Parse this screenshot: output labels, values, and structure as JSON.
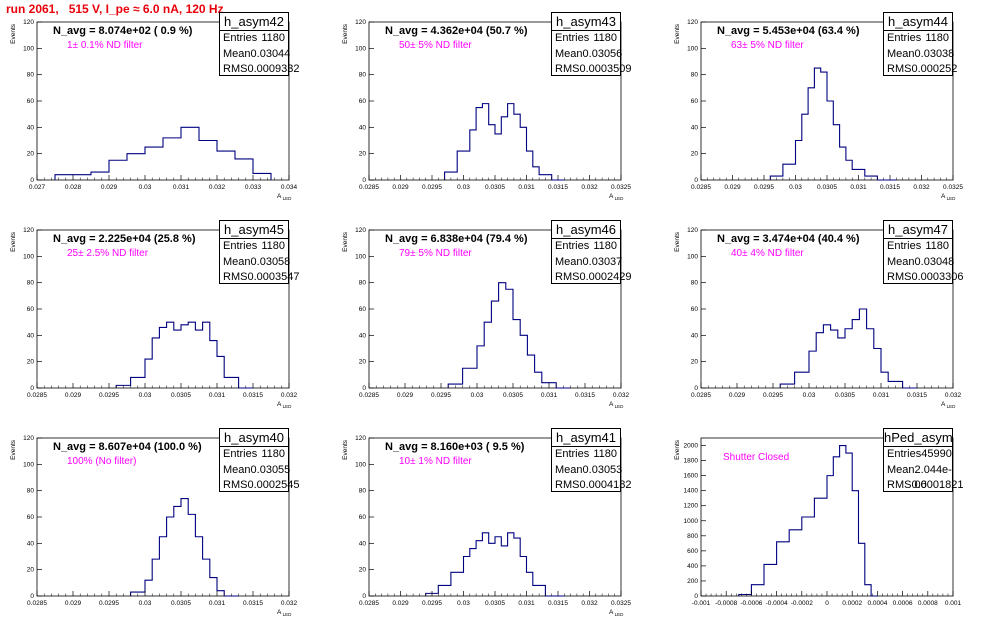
{
  "figure": {
    "title": "run 2061,   515 V, I_pe ≈ 6.0 nA, 120 Hz"
  },
  "chart_data": [
    {
      "type": "bar",
      "name": "h_asym42",
      "stats": {
        "entries": "1180",
        "mean": "0.03044",
        "rms": "0.0009332"
      },
      "navg": "N_avg = 8.074e+02 ( 0.9 %)",
      "note": "1± 0.1% ND filter",
      "xlabel": "A_LED",
      "ylabel": "Events",
      "xlim": [
        0.027,
        0.034
      ],
      "ylim": [
        0,
        120
      ],
      "xticks": [
        "0.027",
        "0.028",
        "0.029",
        "0.03",
        "0.031",
        "0.032",
        "0.033",
        "0.034"
      ],
      "yticks": [
        "0",
        "20",
        "40",
        "60",
        "80",
        "100",
        "120"
      ],
      "bin_edges": [
        0.0275,
        0.0285,
        0.029,
        0.0295,
        0.03,
        0.0305,
        0.031,
        0.0315,
        0.032,
        0.0325,
        0.033,
        0.0335
      ],
      "values": [
        4,
        6,
        15,
        20,
        25,
        32,
        40,
        30,
        22,
        16,
        5,
        0
      ]
    },
    {
      "type": "bar",
      "name": "h_asym43",
      "stats": {
        "entries": "1180",
        "mean": "0.03056",
        "rms": "0.0003509"
      },
      "navg": "N_avg = 4.362e+04 (50.7 %)",
      "note": "50± 5% ND filter",
      "xlabel": "A_LED",
      "ylabel": "Events",
      "xlim": [
        0.0285,
        0.0325
      ],
      "ylim": [
        0,
        120
      ],
      "xticks": [
        "0.0285",
        "0.029",
        "0.0295",
        "0.03",
        "0.0305",
        "0.031",
        "0.0315",
        "0.032",
        "0.0325"
      ],
      "yticks": [
        "0",
        "20",
        "40",
        "60",
        "80",
        "100",
        "120"
      ],
      "bin_edges": [
        0.0297,
        0.0299,
        0.0301,
        0.0302,
        0.0303,
        0.0304,
        0.0305,
        0.0306,
        0.0307,
        0.0308,
        0.0309,
        0.031,
        0.0311,
        0.0312,
        0.0314,
        0.0316
      ],
      "values": [
        6,
        22,
        38,
        55,
        58,
        42,
        35,
        48,
        58,
        50,
        40,
        22,
        10,
        4,
        0
      ]
    },
    {
      "type": "bar",
      "name": "h_asym44",
      "stats": {
        "entries": "1180",
        "mean": "0.03038",
        "rms": "0.000252"
      },
      "navg": "N_avg = 5.453e+04 (63.4 %)",
      "note": "63± 5% ND filter",
      "xlabel": "A_LED",
      "ylabel": "Events",
      "xlim": [
        0.0285,
        0.0325
      ],
      "ylim": [
        0,
        120
      ],
      "xticks": [
        "0.0285",
        "0.029",
        "0.0295",
        "0.03",
        "0.0305",
        "0.031",
        "0.0315",
        "0.032",
        "0.0325"
      ],
      "yticks": [
        "0",
        "20",
        "40",
        "60",
        "80",
        "100",
        "120"
      ],
      "bin_edges": [
        0.0296,
        0.0298,
        0.03,
        0.0301,
        0.0302,
        0.0303,
        0.0304,
        0.0305,
        0.0306,
        0.0307,
        0.0308,
        0.0309,
        0.0311,
        0.0313,
        0.0316
      ],
      "values": [
        3,
        12,
        30,
        50,
        70,
        85,
        82,
        60,
        42,
        25,
        15,
        8,
        3,
        0
      ]
    },
    {
      "type": "bar",
      "name": "h_asym45",
      "stats": {
        "entries": "1180",
        "mean": "0.03058",
        "rms": "0.0003547"
      },
      "navg": "N_avg = 2.225e+04 (25.8 %)",
      "note": "25± 2.5% ND filter",
      "xlabel": "A_LED",
      "ylabel": "Events",
      "xlim": [
        0.0285,
        0.032
      ],
      "ylim": [
        0,
        120
      ],
      "xticks": [
        "0.0285",
        "0.029",
        "0.0295",
        "0.03",
        "0.0305",
        "0.031",
        "0.0315",
        "0.032"
      ],
      "yticks": [
        "0",
        "20",
        "40",
        "60",
        "80",
        "100",
        "120"
      ],
      "bin_edges": [
        0.0296,
        0.0298,
        0.03,
        0.0301,
        0.0302,
        0.0303,
        0.0304,
        0.0305,
        0.0306,
        0.0307,
        0.0308,
        0.0309,
        0.031,
        0.0311,
        0.0313,
        0.0315
      ],
      "values": [
        2,
        8,
        22,
        38,
        46,
        50,
        44,
        48,
        50,
        44,
        50,
        36,
        24,
        8,
        0
      ]
    },
    {
      "type": "bar",
      "name": "h_asym46",
      "stats": {
        "entries": "1180",
        "mean": "0.03037",
        "rms": "0.0002429"
      },
      "navg": "N_avg = 6.838e+04 (79.4 %)",
      "note": "79± 5% ND filter",
      "xlabel": "A_LED",
      "ylabel": "Events",
      "xlim": [
        0.0285,
        0.032
      ],
      "ylim": [
        0,
        120
      ],
      "xticks": [
        "0.0285",
        "0.029",
        "0.0295",
        "0.03",
        "0.0305",
        "0.031",
        "0.0315",
        "0.032"
      ],
      "yticks": [
        "0",
        "20",
        "40",
        "60",
        "80",
        "100",
        "120"
      ],
      "bin_edges": [
        0.0296,
        0.0298,
        0.03,
        0.0301,
        0.0302,
        0.0303,
        0.0304,
        0.0305,
        0.0306,
        0.0307,
        0.0308,
        0.0309,
        0.0311,
        0.0313
      ],
      "values": [
        3,
        15,
        32,
        50,
        66,
        80,
        75,
        52,
        40,
        25,
        12,
        4,
        0
      ]
    },
    {
      "type": "bar",
      "name": "h_asym47",
      "stats": {
        "entries": "1180",
        "mean": "0.03048",
        "rms": "0.0003306"
      },
      "navg": "N_avg = 3.474e+04 (40.4 %)",
      "note": "40± 4% ND filter",
      "xlabel": "A_LED",
      "ylabel": "Events",
      "xlim": [
        0.0285,
        0.032
      ],
      "ylim": [
        0,
        120
      ],
      "xticks": [
        "0.0285",
        "0.029",
        "0.0295",
        "0.03",
        "0.0305",
        "0.031",
        "0.0315",
        "0.032"
      ],
      "yticks": [
        "0",
        "20",
        "40",
        "60",
        "80",
        "100",
        "120"
      ],
      "bin_edges": [
        0.0296,
        0.0298,
        0.03,
        0.0301,
        0.0302,
        0.0303,
        0.0304,
        0.0305,
        0.0306,
        0.0307,
        0.0308,
        0.0309,
        0.031,
        0.0311,
        0.0313,
        0.0315
      ],
      "values": [
        3,
        12,
        28,
        42,
        48,
        44,
        38,
        45,
        52,
        60,
        45,
        30,
        12,
        5,
        0
      ]
    },
    {
      "type": "bar",
      "name": "h_asym40",
      "stats": {
        "entries": "1180",
        "mean": "0.03055",
        "rms": "0.0002545"
      },
      "navg": "N_avg = 8.607e+04 (100.0 %)",
      "note": "100% (No filter)",
      "xlabel": "A_LED",
      "ylabel": "Events",
      "xlim": [
        0.0285,
        0.032
      ],
      "ylim": [
        0,
        120
      ],
      "xticks": [
        "0.0285",
        "0.029",
        "0.0295",
        "0.03",
        "0.0305",
        "0.031",
        "0.0315",
        "0.032"
      ],
      "yticks": [
        "0",
        "20",
        "40",
        "60",
        "80",
        "100",
        "120"
      ],
      "bin_edges": [
        0.0298,
        0.03,
        0.0301,
        0.0302,
        0.0303,
        0.0304,
        0.0305,
        0.0306,
        0.0307,
        0.0308,
        0.0309,
        0.031,
        0.0311,
        0.0313
      ],
      "values": [
        3,
        12,
        28,
        45,
        60,
        68,
        74,
        62,
        45,
        28,
        14,
        4,
        0
      ]
    },
    {
      "type": "bar",
      "name": "h_asym41",
      "stats": {
        "entries": "1180",
        "mean": "0.03053",
        "rms": "0.0004182"
      },
      "navg": "N_avg = 8.160e+03 ( 9.5 %)",
      "note": "10± 1% ND filter",
      "xlabel": "A_LED",
      "ylabel": "Events",
      "xlim": [
        0.0285,
        0.0325
      ],
      "ylim": [
        0,
        120
      ],
      "xticks": [
        "0.0285",
        "0.029",
        "0.0295",
        "0.03",
        "0.0305",
        "0.031",
        "0.0315",
        "0.032",
        "0.0325"
      ],
      "yticks": [
        "0",
        "20",
        "40",
        "60",
        "80",
        "100",
        "120"
      ],
      "bin_edges": [
        0.0294,
        0.0296,
        0.0298,
        0.03,
        0.0301,
        0.0302,
        0.0303,
        0.0304,
        0.0305,
        0.0306,
        0.0307,
        0.0308,
        0.0309,
        0.031,
        0.0311,
        0.0313,
        0.0316
      ],
      "values": [
        2,
        8,
        18,
        30,
        36,
        42,
        48,
        40,
        45,
        38,
        48,
        44,
        30,
        18,
        8,
        0
      ]
    },
    {
      "type": "bar",
      "name": "hPed_asym",
      "stats": {
        "entries": "45990",
        "mean": "2.044e-06",
        "rms": "0.0001821"
      },
      "navg": "",
      "note": "Shutter Closed",
      "xlabel": "",
      "ylabel": "Events",
      "xlim": [
        -0.001,
        0.001
      ],
      "ylim": [
        0,
        2100
      ],
      "xticks": [
        "-0.001",
        "-0.0008",
        "-0.0006",
        "-0.0004",
        "-0.0002",
        "0",
        "0.0002",
        "0.0004",
        "0.0006",
        "0.0008",
        "0.001"
      ],
      "yticks": [
        "0",
        "200",
        "400",
        "600",
        "800",
        "1000",
        "1200",
        "1400",
        "1600",
        "1800",
        "2000"
      ],
      "bin_edges": [
        -0.0007,
        -0.0006,
        -0.0005,
        -0.0004,
        -0.0003,
        -0.0002,
        -0.0001,
        0,
        5e-05,
        0.0001,
        0.00015,
        0.0002,
        0.00025,
        0.0003,
        0.00035,
        0.0004
      ],
      "values": [
        20,
        150,
        420,
        720,
        880,
        1050,
        1300,
        1600,
        1850,
        2000,
        1900,
        1400,
        700,
        150,
        0
      ]
    }
  ]
}
